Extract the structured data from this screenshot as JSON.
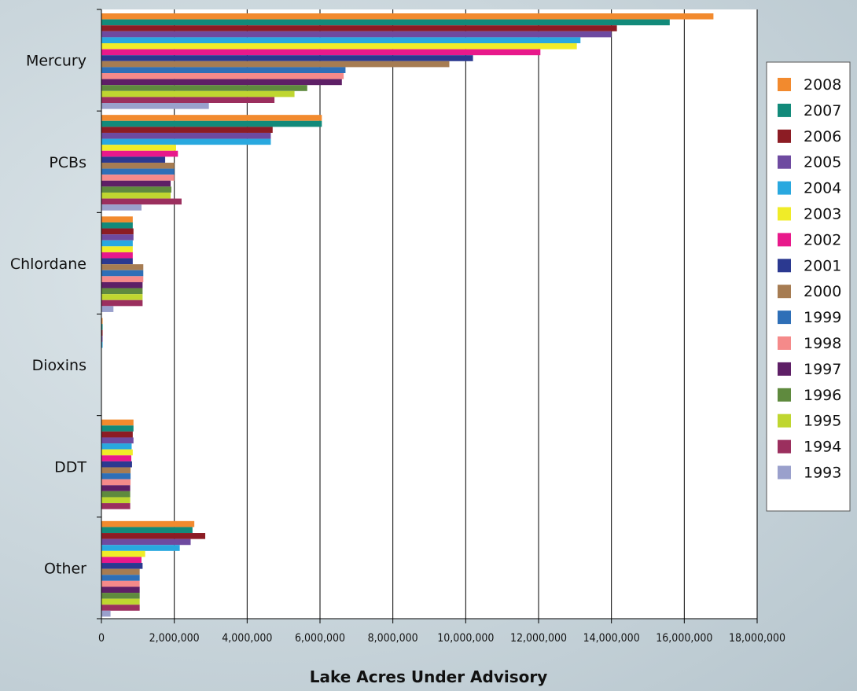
{
  "chart_data": {
    "type": "bar",
    "orientation": "horizontal",
    "title": "",
    "xlabel": "Lake Acres Under Advisory",
    "ylabel": "",
    "xlim": [
      0,
      18000000
    ],
    "x_ticks": [
      "0",
      "2,000,000",
      "4,000,000",
      "6,000,000",
      "8,000,000",
      "10,000,000",
      "12,000,000",
      "14,000,000",
      "16,000,000",
      "18,000,000"
    ],
    "grid": "vertical",
    "legend_position": "right",
    "categories": [
      "Mercury",
      "PCBs",
      "Chlordane",
      "Dioxins",
      "DDT",
      "Other"
    ],
    "series": [
      {
        "name": "2008",
        "color": "#f28a2e",
        "values": [
          16800000,
          6050000,
          860000,
          30000,
          880000,
          2550000
        ]
      },
      {
        "name": "2007",
        "color": "#128a7a",
        "values": [
          15600000,
          6050000,
          860000,
          30000,
          880000,
          2500000
        ]
      },
      {
        "name": "2006",
        "color": "#8c1c24",
        "values": [
          14150000,
          4700000,
          880000,
          30000,
          860000,
          2850000
        ]
      },
      {
        "name": "2005",
        "color": "#6e4aa0",
        "values": [
          14000000,
          4650000,
          880000,
          30000,
          880000,
          2450000
        ]
      },
      {
        "name": "2004",
        "color": "#29a8df",
        "values": [
          13150000,
          4650000,
          860000,
          30000,
          830000,
          2150000
        ]
      },
      {
        "name": "2003",
        "color": "#f0ec28",
        "values": [
          13050000,
          2050000,
          860000,
          0,
          860000,
          1200000
        ]
      },
      {
        "name": "2002",
        "color": "#e8198b",
        "values": [
          12050000,
          2100000,
          860000,
          0,
          820000,
          1100000
        ]
      },
      {
        "name": "2001",
        "color": "#2b3990",
        "values": [
          10200000,
          1750000,
          860000,
          0,
          840000,
          1130000
        ]
      },
      {
        "name": "2000",
        "color": "#a67c52",
        "values": [
          9550000,
          2000000,
          1150000,
          0,
          800000,
          1050000
        ]
      },
      {
        "name": "1999",
        "color": "#2e6fb7",
        "values": [
          6700000,
          2000000,
          1150000,
          0,
          800000,
          1050000
        ]
      },
      {
        "name": "1998",
        "color": "#f58a8a",
        "values": [
          6650000,
          2000000,
          1150000,
          0,
          800000,
          1050000
        ]
      },
      {
        "name": "1997",
        "color": "#5e1f66",
        "values": [
          6600000,
          1900000,
          1130000,
          0,
          790000,
          1050000
        ]
      },
      {
        "name": "1996",
        "color": "#5f8a3e",
        "values": [
          5650000,
          1920000,
          1130000,
          0,
          790000,
          1050000
        ]
      },
      {
        "name": "1995",
        "color": "#bfd630",
        "values": [
          5300000,
          1900000,
          1130000,
          0,
          790000,
          1050000
        ]
      },
      {
        "name": "1994",
        "color": "#9b2f5e",
        "values": [
          4750000,
          2200000,
          1130000,
          0,
          790000,
          1050000
        ]
      },
      {
        "name": "1993",
        "color": "#9aa0cc",
        "values": [
          2950000,
          1100000,
          330000,
          0,
          0,
          250000
        ]
      }
    ]
  }
}
